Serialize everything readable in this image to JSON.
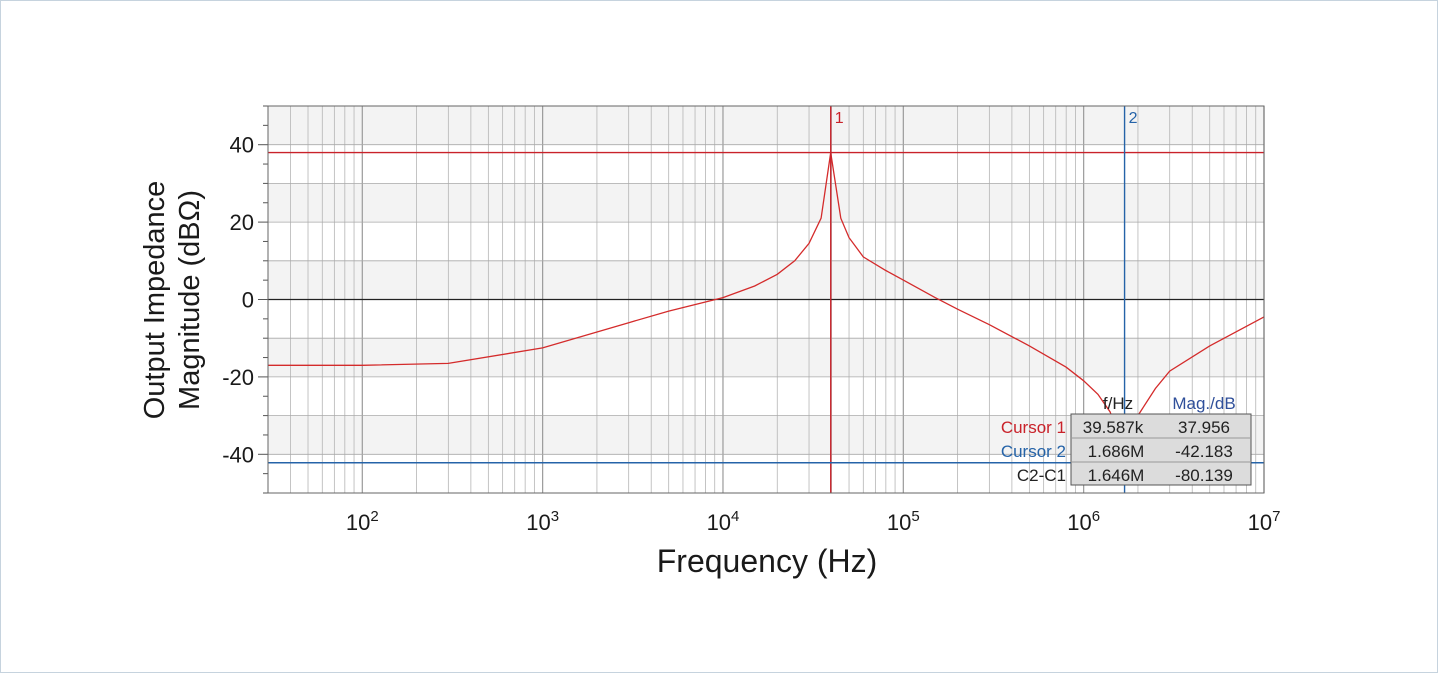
{
  "chart_data": {
    "type": "line",
    "xlabel": "Frequency (Hz)",
    "ylabel_line1": "Output Impedance",
    "ylabel_line2": "Magnitude (dBΩ)",
    "xscale": "log",
    "xlim": [
      30,
      10000000
    ],
    "ylim": [
      -50,
      50
    ],
    "grid": true,
    "x_ticks": [
      {
        "value": 100,
        "base": "10",
        "exp": "2"
      },
      {
        "value": 1000,
        "base": "10",
        "exp": "3"
      },
      {
        "value": 10000,
        "base": "10",
        "exp": "4"
      },
      {
        "value": 100000,
        "base": "10",
        "exp": "5"
      },
      {
        "value": 1000000,
        "base": "10",
        "exp": "6"
      },
      {
        "value": 10000000,
        "base": "10",
        "exp": "7"
      }
    ],
    "y_ticks": [
      {
        "value": 40,
        "label": "40"
      },
      {
        "value": 20,
        "label": "20"
      },
      {
        "value": 0,
        "label": "0"
      },
      {
        "value": -20,
        "label": "-20"
      },
      {
        "value": -40,
        "label": "-40"
      }
    ],
    "series": [
      {
        "color": "#d42b2b",
        "x": [
          30,
          100,
          300,
          1000,
          3000,
          5000,
          10000,
          15000,
          20000,
          25000,
          30000,
          35000,
          39587,
          45000,
          50000,
          60000,
          80000,
          100000,
          150000,
          200000,
          300000,
          500000,
          800000,
          1000000,
          1200000,
          1400000,
          1600000,
          1686000,
          1800000,
          2000000,
          2500000,
          3000000,
          5000000,
          10000000
        ],
        "y": [
          -17,
          -17,
          -16.5,
          -12.5,
          -6,
          -3,
          0.5,
          3.5,
          6.5,
          10,
          14.5,
          21,
          37.956,
          21,
          16,
          11,
          7.5,
          5,
          0.5,
          -2.5,
          -6.5,
          -12,
          -17.5,
          -21,
          -24.5,
          -29,
          -36,
          -42.183,
          -36,
          -30,
          -23,
          -18.5,
          -12,
          -4.5
        ]
      }
    ],
    "cursors": [
      {
        "id": "1",
        "name": "Cursor 1",
        "freq": "39.587k",
        "mag": "37.956",
        "x": 39587,
        "y": 37.956,
        "color": "#c9222a"
      },
      {
        "id": "2",
        "name": "Cursor 2",
        "freq": "1.686M",
        "mag": "-42.183",
        "x": 1686000,
        "y": -42.183,
        "color": "#2563a8"
      }
    ],
    "readout": {
      "header_freq": "f/Hz",
      "header_mag": "Mag./dB",
      "diff_label": "C2-C1",
      "diff_freq": "1.646M",
      "diff_mag": "-80.139"
    },
    "colors": {
      "curve": "#d42b2b",
      "cursor1": "#c9222a",
      "cursor2": "#2563a8",
      "grid": "#b5b5b5",
      "plot_bg": "#f3f3f3",
      "mag_header": "#2f4f9a"
    }
  }
}
